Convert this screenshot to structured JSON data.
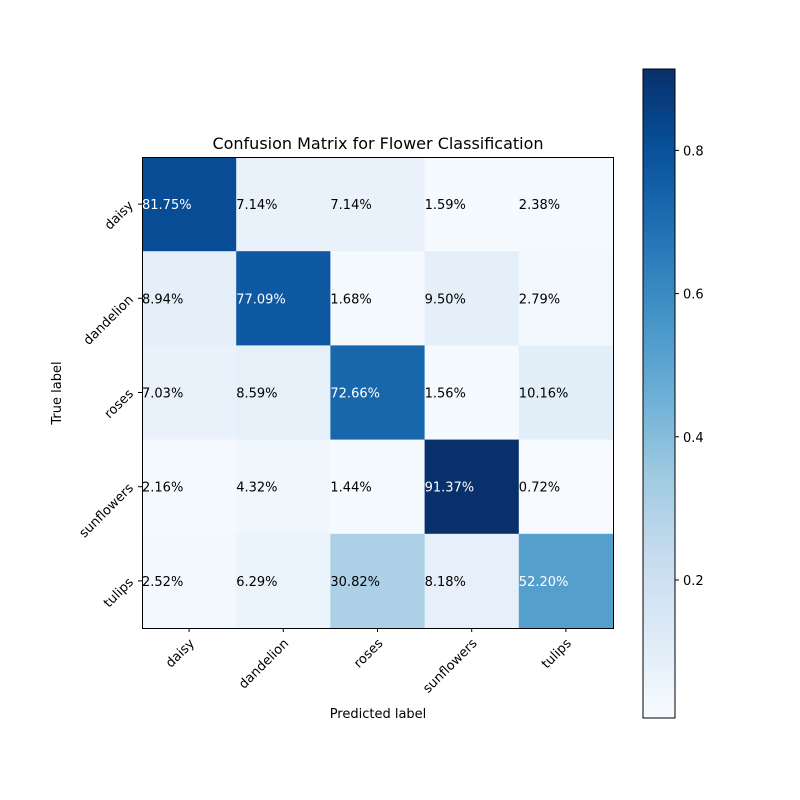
{
  "chart_data": {
    "type": "heatmap",
    "title": "Confusion Matrix for Flower Classification",
    "xlabel": "Predicted label",
    "ylabel": "True label",
    "x_categories": [
      "daisy",
      "dandelion",
      "roses",
      "sunflowers",
      "tulips"
    ],
    "y_categories": [
      "daisy",
      "dandelion",
      "roses",
      "sunflowers",
      "tulips"
    ],
    "values": [
      [
        0.8175,
        0.0714,
        0.0714,
        0.0159,
        0.0238
      ],
      [
        0.0894,
        0.7709,
        0.0168,
        0.095,
        0.0279
      ],
      [
        0.0703,
        0.0859,
        0.7266,
        0.0156,
        0.1016
      ],
      [
        0.0216,
        0.0432,
        0.0144,
        0.9137,
        0.0072
      ],
      [
        0.0252,
        0.0629,
        0.3082,
        0.0818,
        0.522
      ]
    ],
    "cell_labels": [
      [
        "81.75%",
        "7.14%",
        "7.14%",
        "1.59%",
        "2.38%"
      ],
      [
        "8.94%",
        "77.09%",
        "1.68%",
        "9.50%",
        "2.79%"
      ],
      [
        "7.03%",
        "8.59%",
        "72.66%",
        "1.56%",
        "10.16%"
      ],
      [
        "2.16%",
        "4.32%",
        "1.44%",
        "91.37%",
        "0.72%"
      ],
      [
        "2.52%",
        "6.29%",
        "30.82%",
        "8.18%",
        "52.20%"
      ]
    ],
    "colormap": "Blues",
    "colorbar": {
      "ticks": [
        0.2,
        0.4,
        0.6,
        0.8
      ],
      "tick_labels": [
        "0.2",
        "0.4",
        "0.6",
        "0.8"
      ],
      "range": [
        0.0072,
        0.9137
      ]
    },
    "x_tick_rotation": 45,
    "y_tick_rotation": 45,
    "grid": false
  }
}
